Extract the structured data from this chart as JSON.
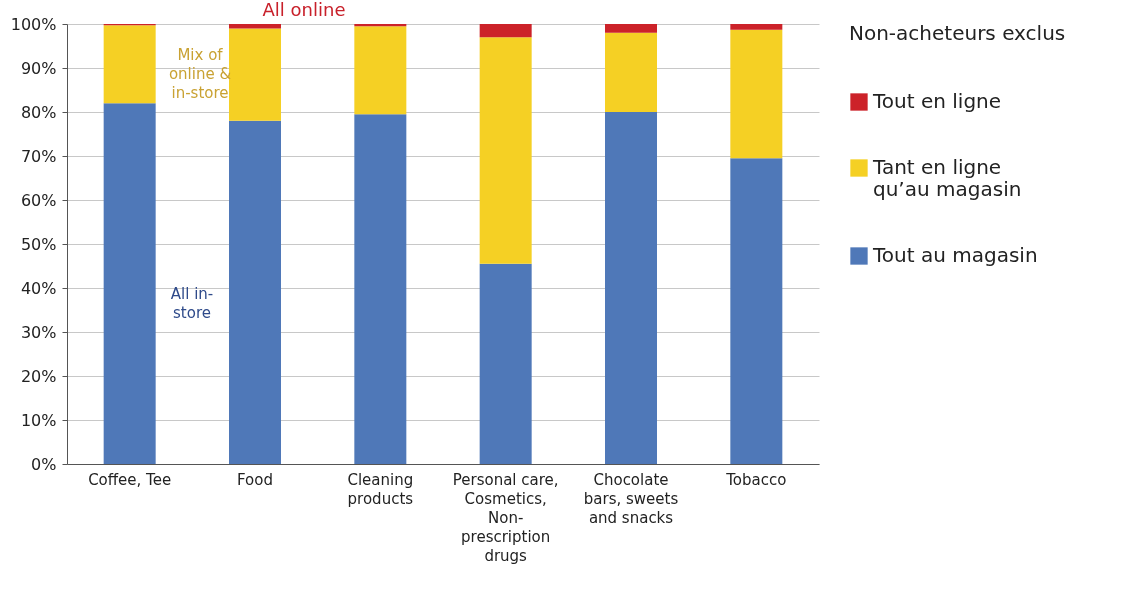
{
  "chart_data": {
    "type": "bar",
    "stacked": true,
    "legend_title": "Non-acheteurs exclus",
    "categories": [
      "Coffee, Tee",
      "Food",
      "Cleaning products",
      "Personal care, Cosmetics, Non-prescription drugs",
      "Chocolate bars, sweets and snacks",
      "Tobacco"
    ],
    "series": [
      {
        "name": "Tout au magasin",
        "color": "#4f78b8",
        "values": [
          82,
          78,
          79.5,
          45.5,
          80,
          69.5
        ]
      },
      {
        "name": "Tant en ligne qu’au magasin",
        "color": "#f5d024",
        "values": [
          17.7,
          21,
          20,
          51.5,
          18,
          29.2
        ]
      },
      {
        "name": "Tout en ligne",
        "color": "#cc2229",
        "values": [
          0.3,
          1,
          0.5,
          3,
          2,
          1.3
        ]
      }
    ],
    "ylim": [
      0,
      100
    ],
    "yticks": [
      {
        "value": 0,
        "label": "0%"
      },
      {
        "value": 10,
        "label": "10%"
      },
      {
        "value": 20,
        "label": "20%"
      },
      {
        "value": 30,
        "label": "30%"
      },
      {
        "value": 40,
        "label": "40%"
      },
      {
        "value": 50,
        "label": "50%"
      },
      {
        "value": 60,
        "label": "60%"
      },
      {
        "value": 70,
        "label": "70%"
      },
      {
        "value": 80,
        "label": "80%"
      },
      {
        "value": 90,
        "label": "90%"
      },
      {
        "value": 100,
        "label": "100%"
      }
    ],
    "grid": "y",
    "legend": "right",
    "annotations": [
      "All online",
      "Mix of online & in-store",
      "All in-store"
    ]
  }
}
